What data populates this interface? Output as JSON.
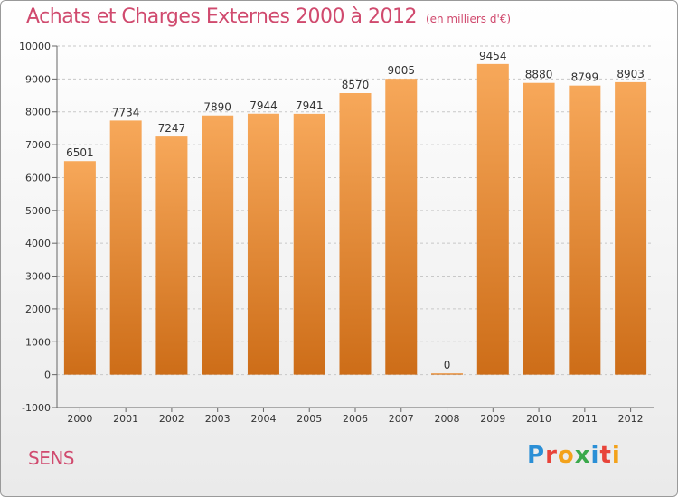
{
  "title": "Achats et Charges Externes 2000 à 2012",
  "subtitle": "(en milliers d'€)",
  "location": "SENS",
  "logo_letters": [
    {
      "ch": "P",
      "color": "#2b8fd6"
    },
    {
      "ch": "r",
      "color": "#e8443a"
    },
    {
      "ch": "o",
      "color": "#f3a21b"
    },
    {
      "ch": "x",
      "color": "#3aa94b"
    },
    {
      "ch": "i",
      "color": "#2b8fd6"
    },
    {
      "ch": "t",
      "color": "#e8443a"
    },
    {
      "ch": "i",
      "color": "#f3a21b"
    }
  ],
  "colors": {
    "accent": "#d04a6e",
    "bar_light": "#f7a85a",
    "bar_dark": "#cd6d18",
    "grid": "#c8c8c8"
  },
  "chart_data": {
    "type": "bar",
    "categories": [
      "2000",
      "2001",
      "2002",
      "2003",
      "2004",
      "2005",
      "2006",
      "2007",
      "2008",
      "2009",
      "2010",
      "2011",
      "2012"
    ],
    "values": [
      6501,
      7734,
      7247,
      7890,
      7944,
      7941,
      8570,
      9005,
      0,
      9454,
      8880,
      8799,
      8903
    ],
    "ylim": [
      -1000,
      10000
    ],
    "yticks": [
      -1000,
      0,
      1000,
      2000,
      3000,
      4000,
      5000,
      6000,
      7000,
      8000,
      9000,
      10000
    ],
    "grid": "horizontal dashed"
  }
}
